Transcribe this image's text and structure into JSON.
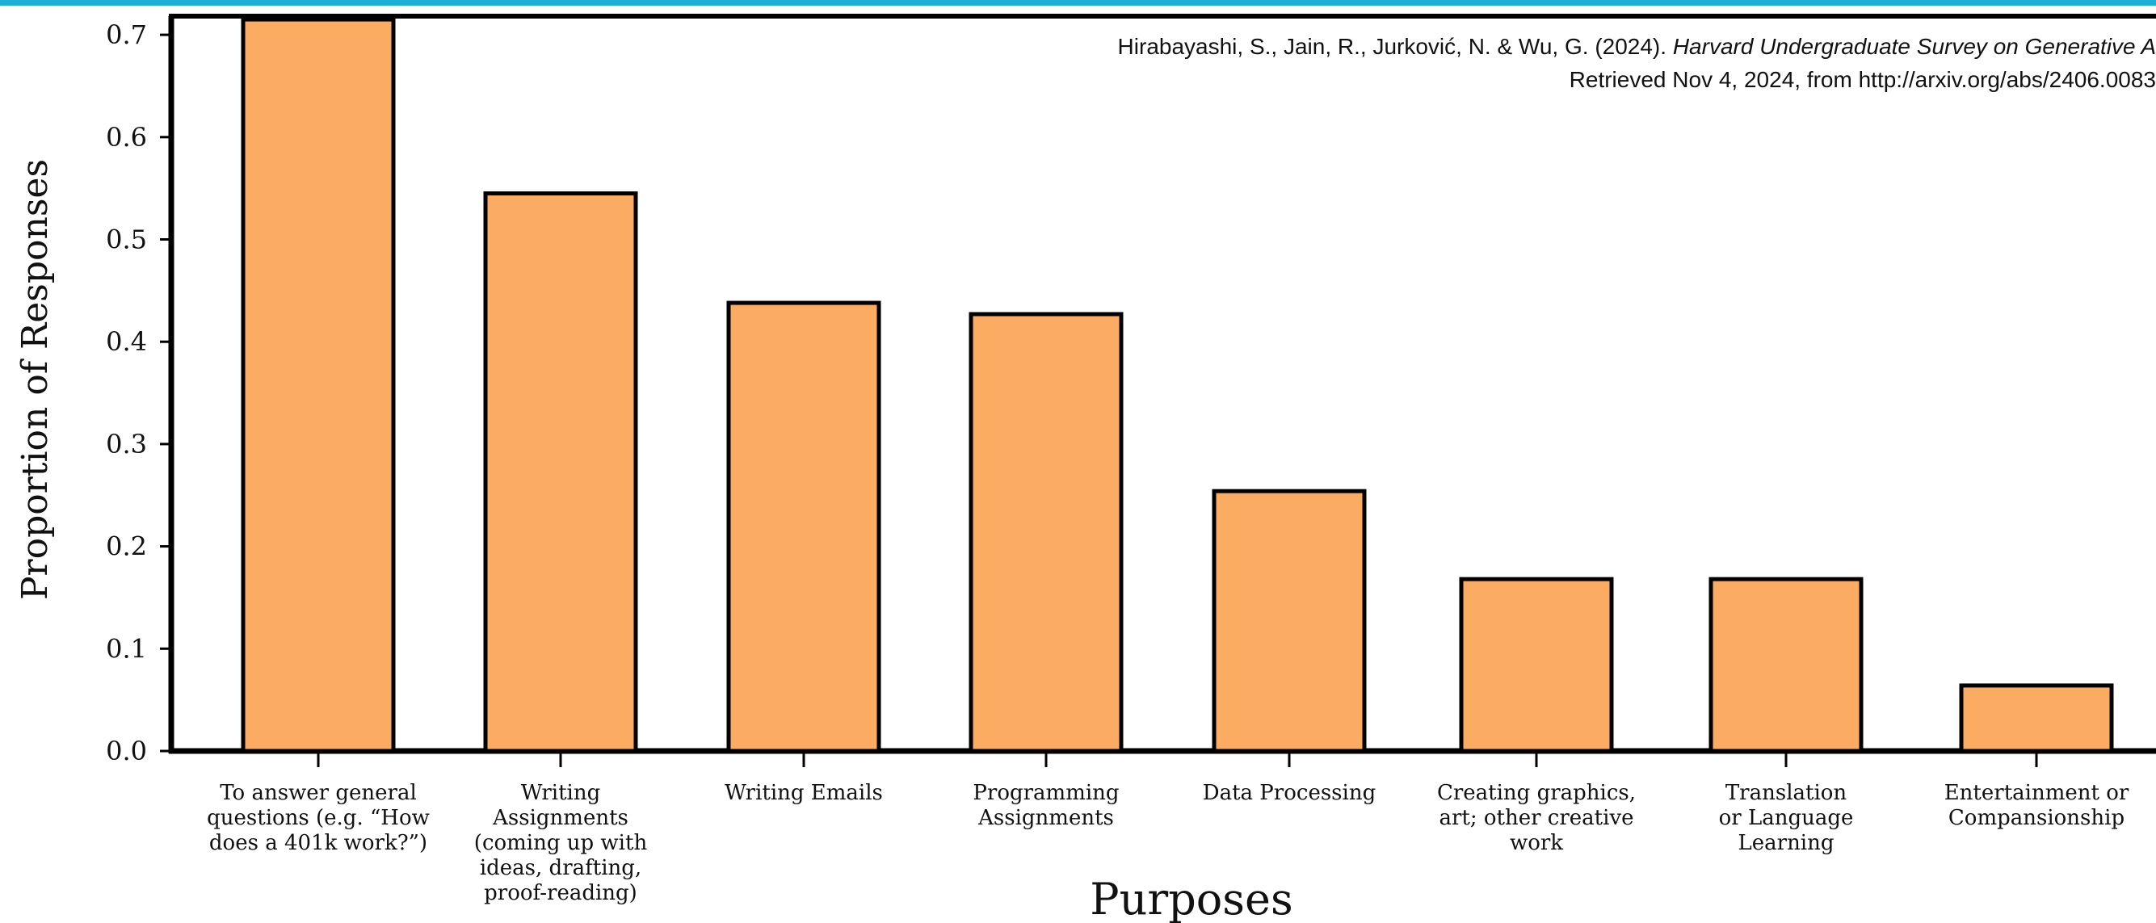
{
  "header": {
    "accent_color": "#1ab0d6"
  },
  "citation": {
    "line1_authors": "Hirabayashi, S., Jain, R., Jurković, N. & Wu, G. (2024). ",
    "line1_title": "Harvard Undergraduate Survey on Generative A",
    "line2": "Retrieved Nov 4, 2024, from http://arxiv.org/abs/2406.0083"
  },
  "chart_data": {
    "type": "bar",
    "title": "",
    "xlabel": "Purposes",
    "ylabel": "Proportion of Responses",
    "ylim": [
      0,
      0.72
    ],
    "yticks": [
      "0.0",
      "0.1",
      "0.2",
      "0.3",
      "0.4",
      "0.5",
      "0.6",
      "0.7"
    ],
    "grid": false,
    "bar_color": "#fbac62",
    "edge_color": "#000000",
    "categories": [
      [
        "To answer general",
        "questions (e.g. “How",
        "does a 401k work?”)"
      ],
      [
        "Writing",
        "Assignments",
        "(coming up with",
        "ideas, drafting,",
        "proof-reading)"
      ],
      [
        "Writing Emails"
      ],
      [
        "Programming",
        "Assignments"
      ],
      [
        "Data Processing"
      ],
      [
        "Creating graphics,",
        "art; other creative",
        "work"
      ],
      [
        "Translation",
        "or Language",
        "Learning"
      ],
      [
        "Entertainment or",
        "Compansionship"
      ]
    ],
    "values": [
      0.715,
      0.545,
      0.438,
      0.427,
      0.254,
      0.168,
      0.168,
      0.064
    ]
  }
}
